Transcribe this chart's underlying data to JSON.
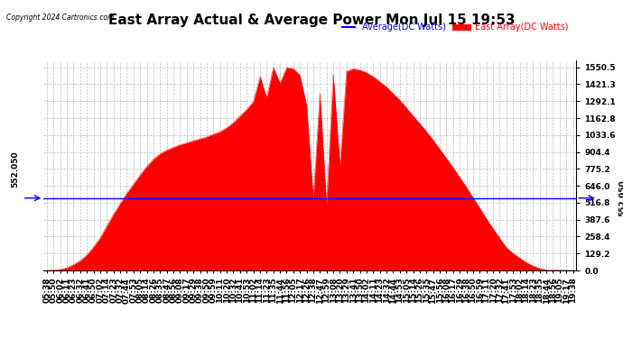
{
  "title": "East Array Actual & Average Power Mon Jul 15 19:53",
  "copyright": "Copyright 2024 Cartronics.com",
  "legend_avg": "Average(DC Watts)",
  "legend_east": "East Array(DC Watts)",
  "avg_value": 552.05,
  "avg_label": "552.050",
  "yticks": [
    0.0,
    129.2,
    258.4,
    387.6,
    516.8,
    646.0,
    775.2,
    904.4,
    1033.6,
    1162.8,
    1292.1,
    1421.3,
    1550.5
  ],
  "ymax": 1600,
  "ymin": 0,
  "bg_color": "#ffffff",
  "grid_color": "#bbbbbb",
  "fill_color": "#ff0000",
  "line_color": "#ff0000",
  "avg_line_color": "#0000ff",
  "title_fontsize": 11,
  "tick_fontsize": 6.5,
  "time_labels": [
    "05:38",
    "05:50",
    "06:02",
    "06:11",
    "06:23",
    "06:32",
    "06:41",
    "06:50",
    "07:02",
    "07:14",
    "07:23",
    "07:32",
    "07:44",
    "07:53",
    "08:05",
    "08:14",
    "08:26",
    "08:35",
    "08:47",
    "08:56",
    "09:08",
    "09:17",
    "09:29",
    "09:38",
    "09:50",
    "09:59",
    "10:11",
    "10:20",
    "10:32",
    "10:41",
    "10:53",
    "11:02",
    "11:14",
    "11:23",
    "11:35",
    "11:44",
    "11:56",
    "12:05",
    "12:17",
    "12:26",
    "12:38",
    "12:47",
    "12:59",
    "13:08",
    "13:20",
    "13:29",
    "13:41",
    "13:50",
    "14:02",
    "14:11",
    "14:23",
    "14:32",
    "14:44",
    "14:53",
    "15:05",
    "15:14",
    "15:26",
    "15:35",
    "15:47",
    "15:56",
    "16:08",
    "16:17",
    "16:29",
    "16:38",
    "16:50",
    "16:59",
    "17:11",
    "17:20",
    "17:32",
    "17:41",
    "17:53",
    "18:02",
    "18:14",
    "18:23",
    "18:35",
    "18:44",
    "18:56",
    "19:05",
    "19:17",
    "19:38"
  ],
  "power_values": [
    0,
    2,
    8,
    20,
    45,
    75,
    120,
    180,
    250,
    340,
    430,
    510,
    590,
    660,
    730,
    795,
    850,
    890,
    920,
    940,
    960,
    975,
    990,
    1005,
    1020,
    1040,
    1060,
    1090,
    1130,
    1180,
    1230,
    1290,
    1480,
    1320,
    1550,
    1430,
    1550,
    1540,
    1490,
    1260,
    550,
    1350,
    500,
    1500,
    800,
    1520,
    1540,
    1530,
    1510,
    1480,
    1440,
    1400,
    1350,
    1300,
    1240,
    1180,
    1120,
    1060,
    995,
    925,
    855,
    785,
    710,
    635,
    555,
    475,
    395,
    320,
    245,
    175,
    130,
    95,
    60,
    35,
    15,
    5,
    2,
    1,
    0,
    0
  ]
}
